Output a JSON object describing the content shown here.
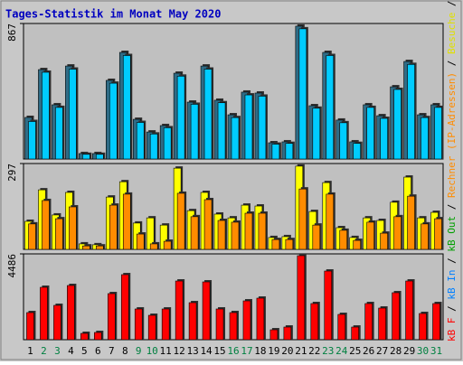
{
  "chart_data": [
    {
      "type": "bar",
      "title": "Tages-Statistik im Monat May 2020",
      "series": [
        {
          "color": "#2f6c86",
          "values": [
            266,
            572,
            347,
            595,
            35,
            35,
            503,
            682,
            254,
            173,
            214,
            549,
            364,
            595,
            376,
            283,
            428,
            422,
            104,
            110,
            850,
            341,
            682,
            249,
            110,
            347,
            277,
            462,
            624,
            283,
            347
          ]
        },
        {
          "color": "#00ccff",
          "values": [
            240,
            555,
            330,
            575,
            30,
            30,
            485,
            662,
            234,
            160,
            200,
            530,
            350,
            575,
            360,
            265,
            410,
            402,
            95,
            100,
            833,
            325,
            662,
            232,
            100,
            330,
            260,
            445,
            605,
            265,
            330
          ]
        }
      ],
      "ylim": [
        0,
        867
      ],
      "yticks": [
        867
      ]
    },
    {
      "type": "bar",
      "series": [
        {
          "color": "#ffff00",
          "values": [
            97,
            206,
            119,
            197,
            19,
            16,
            181,
            234,
            91,
            109,
            84,
            281,
            134,
            197,
            122,
            109,
            153,
            150,
            41,
            44,
            288,
            131,
            231,
            75,
            41,
            109,
            100,
            163,
            250,
            109,
            128
          ]
        },
        {
          "color": "#ff8c00",
          "values": [
            88,
            169,
            106,
            147,
            12,
            12,
            153,
            191,
            53,
            19,
            28,
            194,
            113,
            172,
            100,
            94,
            125,
            125,
            34,
            34,
            209,
            84,
            191,
            66,
            31,
            94,
            56,
            113,
            184,
            88,
            106
          ]
        }
      ],
      "ylim": [
        0,
        297
      ],
      "yticks": [
        297
      ]
    },
    {
      "type": "bar",
      "categories": [
        "1",
        "2",
        "3",
        "4",
        "5",
        "6",
        "7",
        "8",
        "9",
        "10",
        "11",
        "12",
        "13",
        "14",
        "15",
        "16",
        "17",
        "18",
        "19",
        "20",
        "21",
        "22",
        "23",
        "24",
        "25",
        "26",
        "27",
        "28",
        "29",
        "30",
        "31"
      ],
      "category_colors": [
        "#000000",
        "#008040",
        "#008040",
        "#000000",
        "#000000",
        "#000000",
        "#000000",
        "#000000",
        "#008040",
        "#008040",
        "#000000",
        "#000000",
        "#000000",
        "#000000",
        "#000000",
        "#008040",
        "#008040",
        "#000000",
        "#000000",
        "#000000",
        "#000000",
        "#000000",
        "#008040",
        "#008040",
        "#000000",
        "#000000",
        "#000000",
        "#000000",
        "#000000",
        "#008040",
        "#008040"
      ],
      "series": [
        {
          "color": "#ff0000",
          "values": [
            1417,
            2739,
            1795,
            2833,
            331,
            378,
            2408,
            3400,
            1606,
            1275,
            1606,
            3069,
            1936,
            3022,
            1606,
            1417,
            2030,
            2172,
            519,
            661,
            4392,
            1889,
            3589,
            1322,
            661,
            1889,
            1653,
            2456,
            3069,
            1370,
            1889
          ]
        }
      ],
      "ylim": [
        0,
        4486
      ],
      "yticks": [
        4486
      ]
    }
  ],
  "side_legend": {
    "separator": " / ",
    "items": [
      {
        "text": "kB F",
        "color": "#ff0000"
      },
      {
        "text": "kB In",
        "color": "#0080ff"
      },
      {
        "text": "kB Out",
        "color": "#00a000"
      },
      {
        "text": "Rechner (IP-Adressen)",
        "color": "#ff8c00"
      },
      {
        "text": "Besuche",
        "color": "#e0e000"
      },
      {
        "text": "Seiten",
        "color": "#00b0d0"
      },
      {
        "text": "Dateien",
        "color": "#0000ff"
      },
      {
        "text": "Anfragen",
        "color": "#008040"
      }
    ]
  }
}
